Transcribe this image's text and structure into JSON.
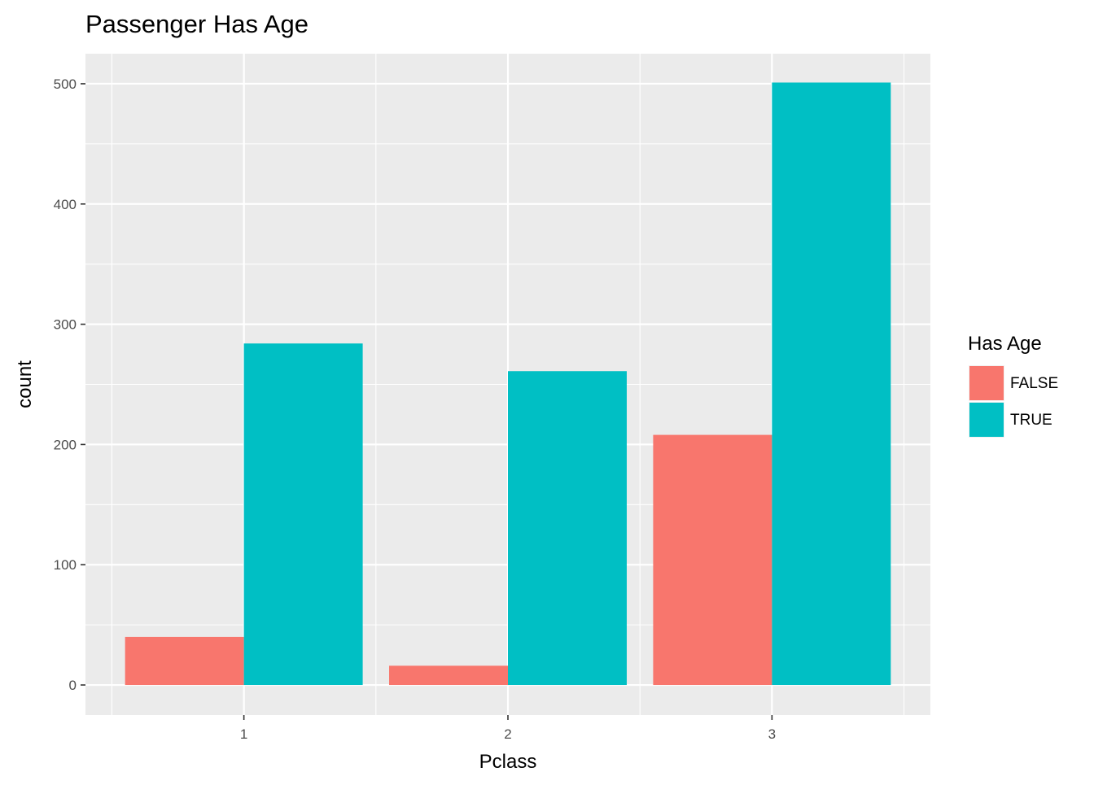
{
  "chart_data": {
    "type": "bar",
    "title": "Passenger Has Age",
    "xlabel": "Pclass",
    "ylabel": "count",
    "categories": [
      "1",
      "2",
      "3"
    ],
    "series": [
      {
        "name": "FALSE",
        "values": [
          40,
          16,
          208
        ],
        "color": "#F8766D"
      },
      {
        "name": "TRUE",
        "values": [
          284,
          261,
          501
        ],
        "color": "#00BFC4"
      }
    ],
    "ylim": [
      -25,
      525
    ],
    "yticks": [
      0,
      100,
      200,
      300,
      400,
      500
    ],
    "legend": {
      "title": "Has Age",
      "position": "right"
    },
    "grid": true,
    "panel_background": "#EBEBEB",
    "grid_color": "#FFFFFF"
  }
}
